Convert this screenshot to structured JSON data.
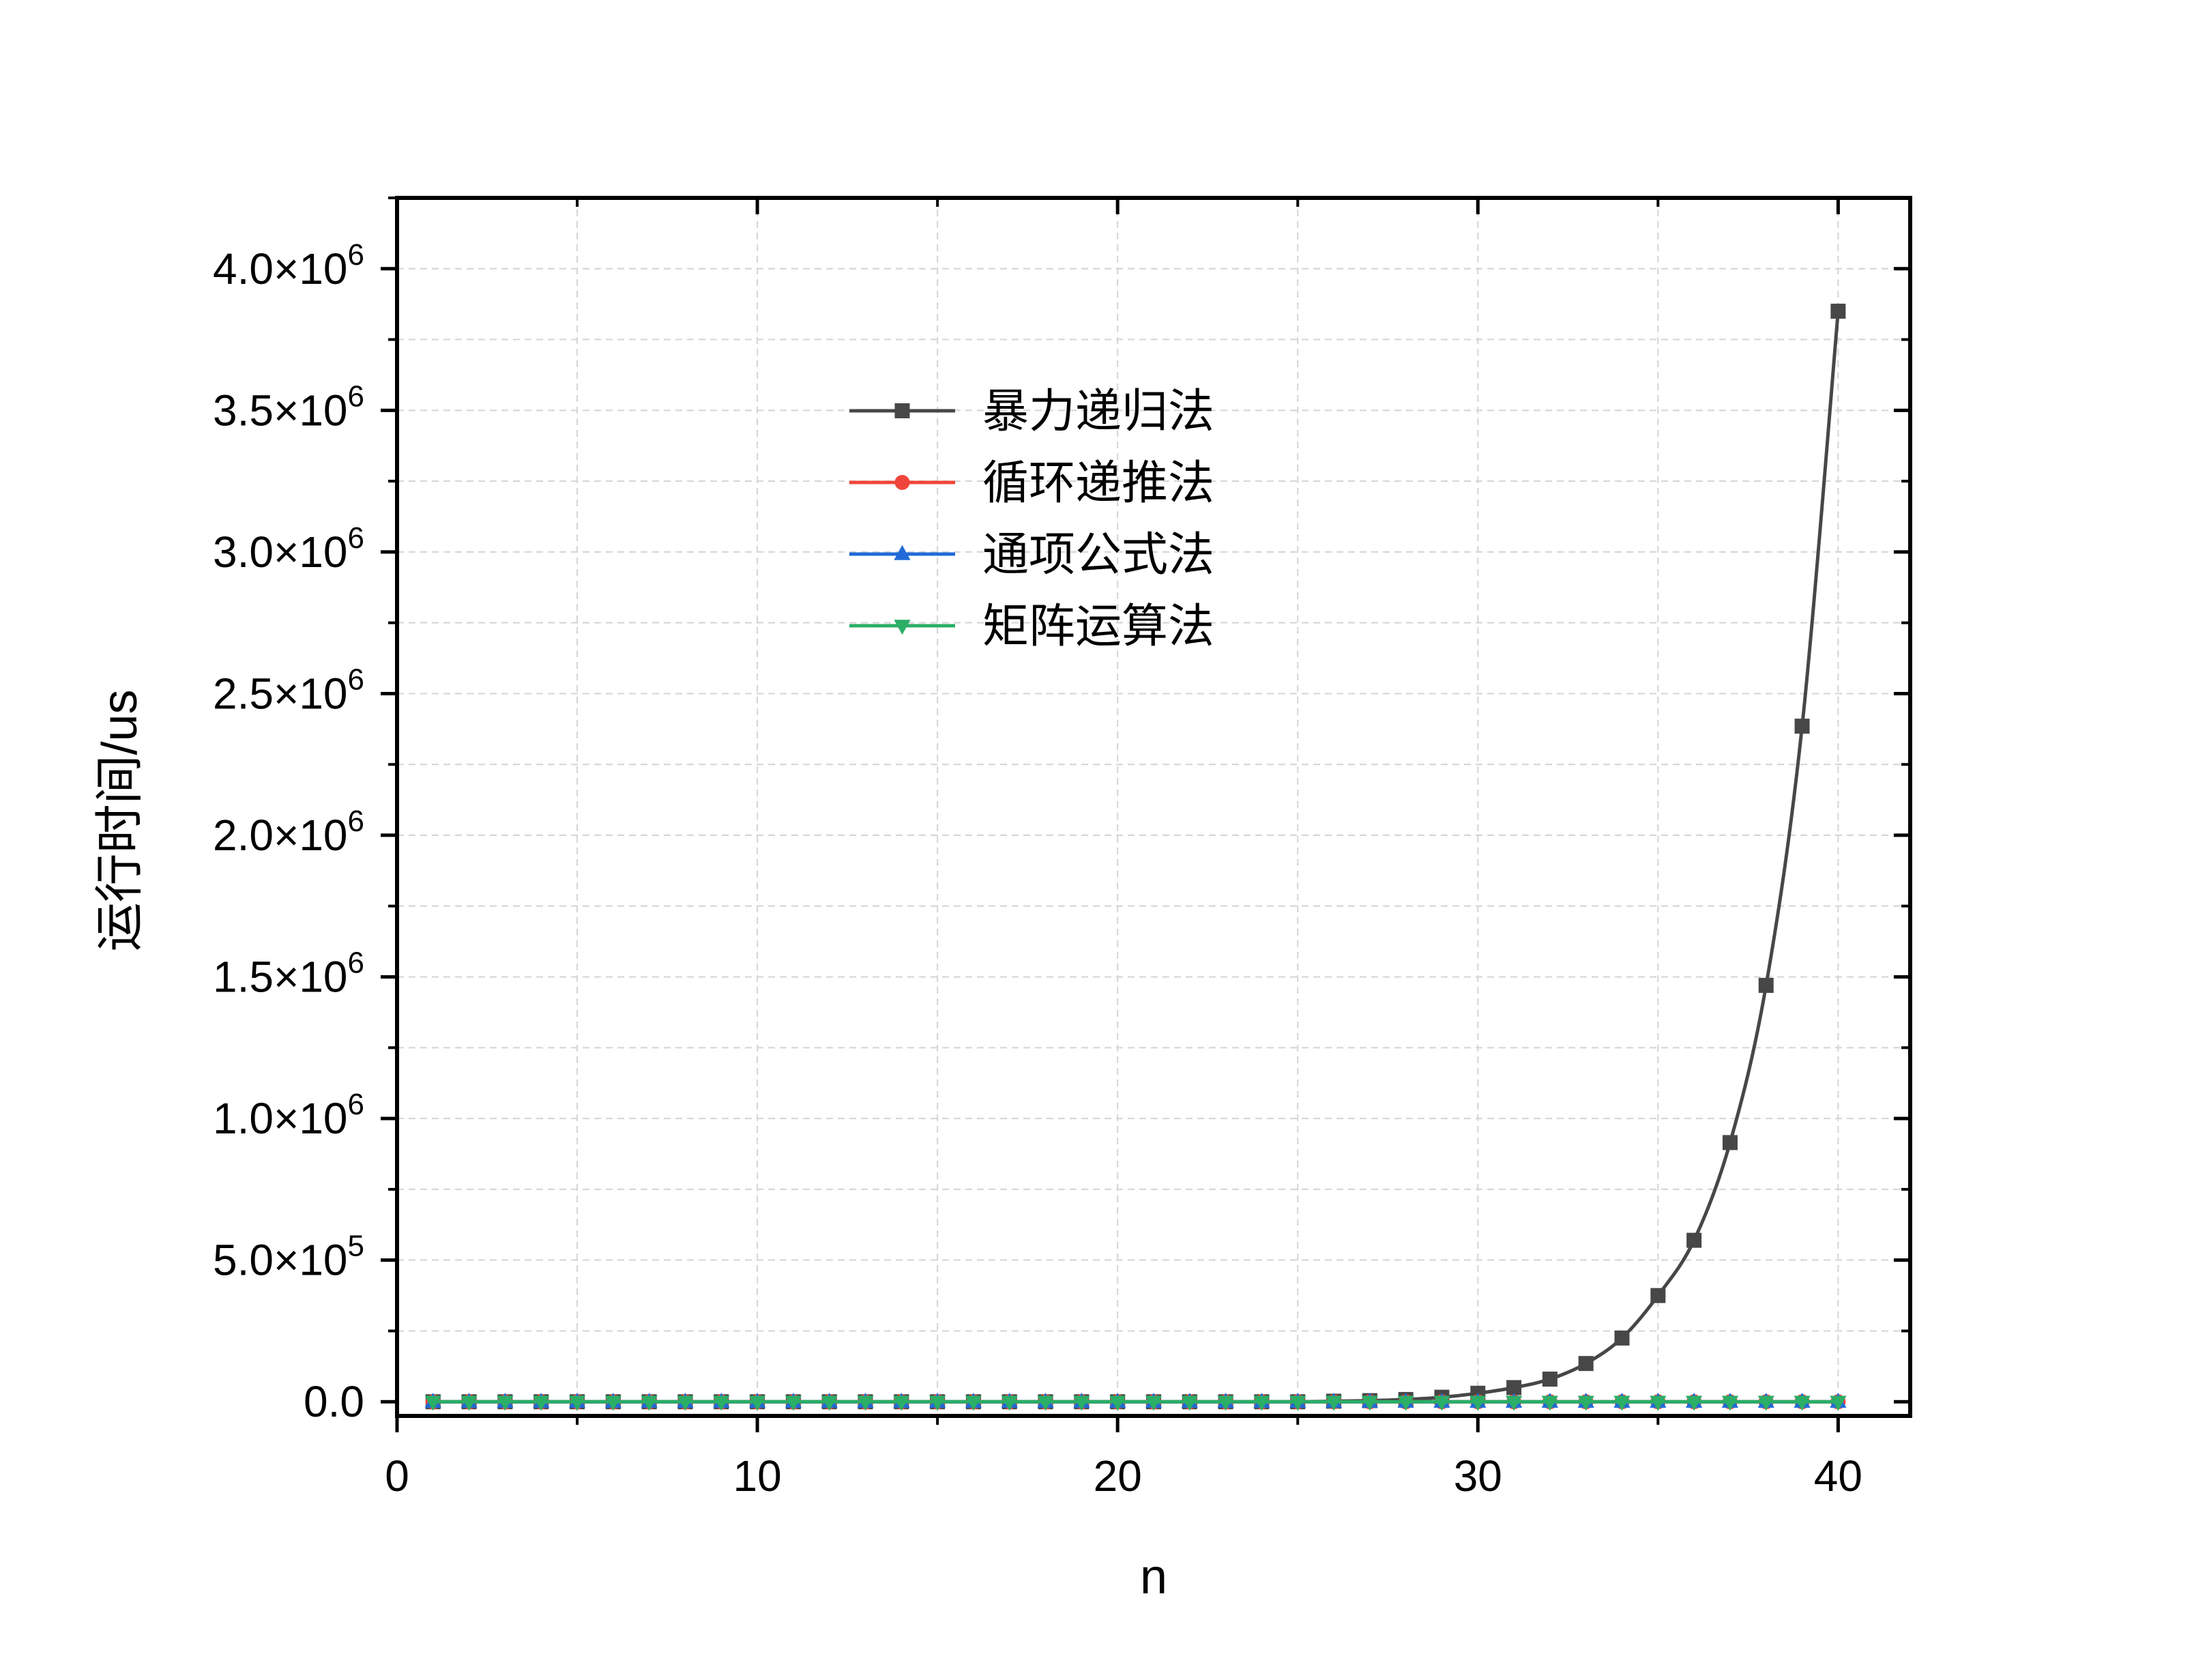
{
  "chart_data": {
    "type": "line",
    "xlabel": "n",
    "ylabel": "运行时间/us",
    "xlim": [
      0,
      42
    ],
    "ylim": [
      -50000,
      4250000
    ],
    "x_ticks": [
      0,
      10,
      20,
      30,
      40
    ],
    "x_tick_labels": [
      "0",
      "10",
      "20",
      "30",
      "40"
    ],
    "y_ticks": [
      0,
      500000,
      1000000,
      1500000,
      2000000,
      2500000,
      3000000,
      3500000,
      4000000
    ],
    "y_tick_labels": [
      {
        "mantissa": "0.0",
        "exp": ""
      },
      {
        "mantissa": "5.0×10",
        "exp": "5"
      },
      {
        "mantissa": "1.0×10",
        "exp": "6"
      },
      {
        "mantissa": "1.5×10",
        "exp": "6"
      },
      {
        "mantissa": "2.0×10",
        "exp": "6"
      },
      {
        "mantissa": "2.5×10",
        "exp": "6"
      },
      {
        "mantissa": "3.0×10",
        "exp": "6"
      },
      {
        "mantissa": "3.5×10",
        "exp": "6"
      },
      {
        "mantissa": "4.0×10",
        "exp": "6"
      }
    ],
    "grid": true,
    "legend_position": "upper-center",
    "x": [
      1,
      2,
      3,
      4,
      5,
      6,
      7,
      8,
      9,
      10,
      11,
      12,
      13,
      14,
      15,
      16,
      17,
      18,
      19,
      20,
      21,
      22,
      23,
      24,
      25,
      26,
      27,
      28,
      29,
      30,
      31,
      32,
      33,
      34,
      35,
      36,
      37,
      38,
      39,
      40
    ],
    "series": [
      {
        "name": "暴力递归法",
        "color": "#474747",
        "marker": "square",
        "values": [
          0,
          0,
          0,
          0,
          0,
          0,
          0,
          0,
          0,
          0,
          0,
          0,
          0,
          0,
          0,
          0,
          0,
          0,
          0,
          0,
          0,
          0,
          0,
          0,
          0,
          2000,
          4000,
          8000,
          16000,
          30000,
          50000,
          80000,
          135000,
          225000,
          375000,
          570000,
          915000,
          1470000,
          2385000,
          3850000
        ]
      },
      {
        "name": "循环递推法",
        "color": "#f0443a",
        "marker": "circle",
        "values": [
          0,
          0,
          0,
          0,
          0,
          0,
          0,
          0,
          0,
          0,
          0,
          0,
          0,
          0,
          0,
          0,
          0,
          0,
          0,
          0,
          0,
          0,
          0,
          0,
          0,
          0,
          0,
          0,
          0,
          0,
          0,
          0,
          0,
          0,
          0,
          0,
          0,
          0,
          0,
          0
        ]
      },
      {
        "name": "通项公式法",
        "color": "#1f6ad8",
        "marker": "triangle-up",
        "values": [
          0,
          0,
          0,
          0,
          0,
          0,
          0,
          0,
          0,
          0,
          0,
          0,
          0,
          0,
          0,
          0,
          0,
          0,
          0,
          0,
          0,
          0,
          0,
          0,
          0,
          0,
          0,
          0,
          0,
          0,
          0,
          0,
          0,
          0,
          0,
          0,
          0,
          0,
          0,
          0
        ]
      },
      {
        "name": "矩阵运算法",
        "color": "#2bae66",
        "marker": "triangle-down",
        "values": [
          0,
          0,
          0,
          0,
          0,
          0,
          0,
          0,
          0,
          0,
          0,
          0,
          0,
          0,
          0,
          0,
          0,
          0,
          0,
          0,
          0,
          0,
          0,
          0,
          0,
          0,
          0,
          0,
          0,
          0,
          0,
          0,
          0,
          0,
          0,
          0,
          0,
          0,
          0,
          0
        ]
      }
    ]
  }
}
